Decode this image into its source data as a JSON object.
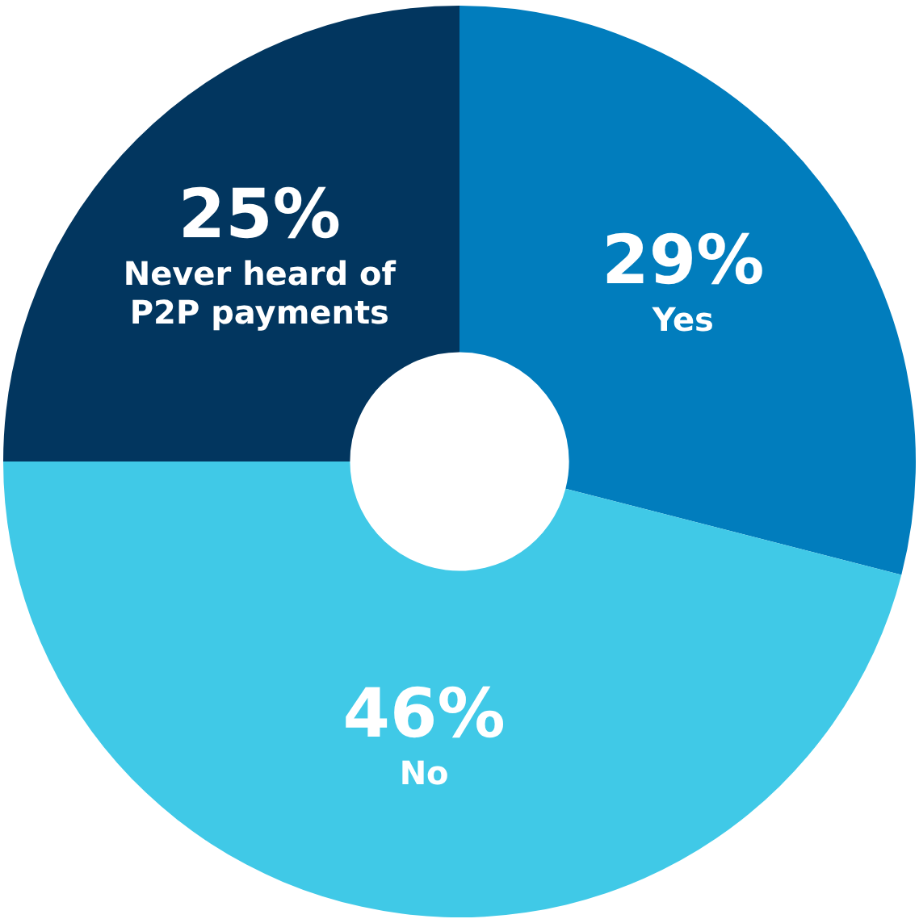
{
  "chart_data": {
    "type": "donut",
    "categories": [
      "Yes",
      "No",
      "Never heard of P2P payments"
    ],
    "values": [
      29,
      46,
      25
    ],
    "colors": [
      "#017dbd",
      "#40c9e7",
      "#02365f"
    ],
    "value_labels": [
      "29%",
      "46%",
      "25%"
    ],
    "legend": false
  }
}
